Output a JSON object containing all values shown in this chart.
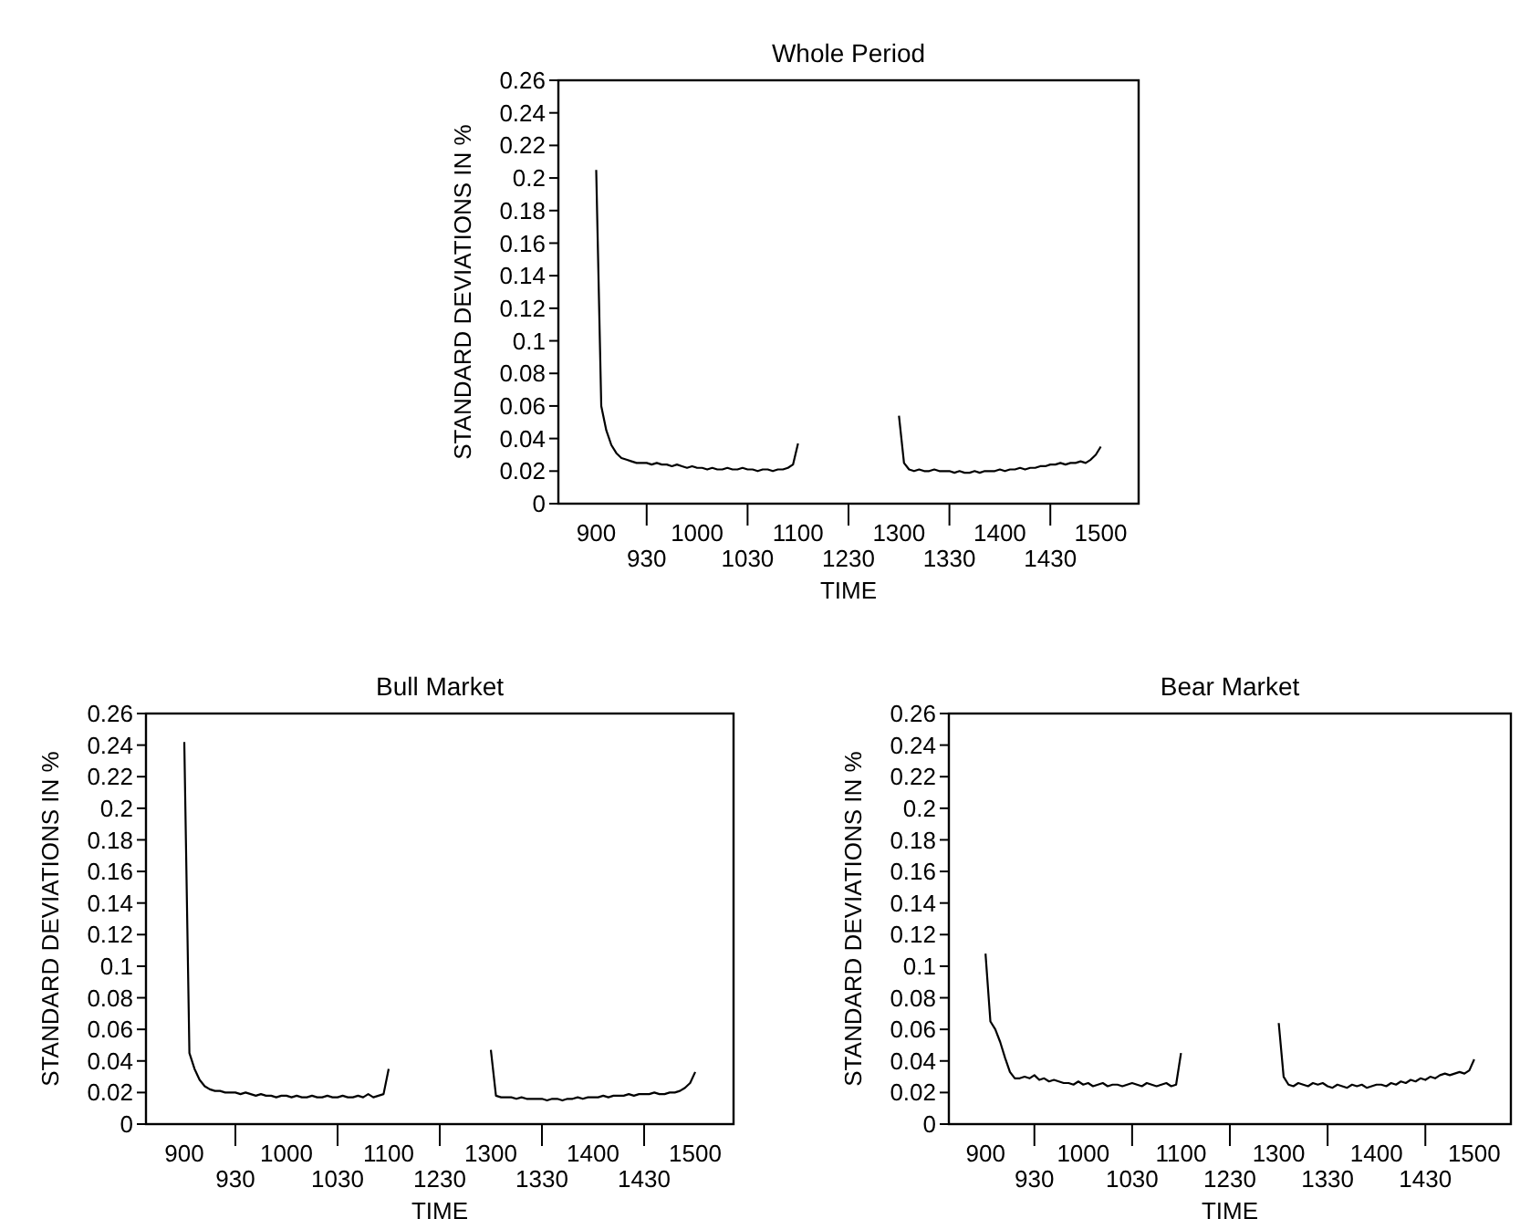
{
  "chart_data": [
    {
      "type": "line",
      "title": "Whole Period",
      "xlabel": "TIME",
      "ylabel": "STANDARD DEVIATIONS IN %",
      "ylim": [
        0,
        0.26
      ],
      "categories": [
        "900",
        null,
        null,
        null,
        null,
        null,
        null,
        null,
        null,
        null,
        "930",
        null,
        null,
        null,
        null,
        null,
        null,
        null,
        null,
        null,
        "1000",
        null,
        null,
        null,
        null,
        null,
        null,
        null,
        null,
        null,
        "1030",
        null,
        null,
        null,
        null,
        null,
        null,
        null,
        null,
        null,
        "1100",
        null,
        null,
        null,
        null,
        null,
        null,
        null,
        null,
        null,
        "1230",
        null,
        null,
        null,
        null,
        null,
        null,
        null,
        null,
        null,
        "1300",
        null,
        null,
        null,
        null,
        null,
        null,
        null,
        null,
        null,
        "1330",
        null,
        null,
        null,
        null,
        null,
        null,
        null,
        null,
        null,
        "1400",
        null,
        null,
        null,
        null,
        null,
        null,
        null,
        null,
        null,
        "1430",
        null,
        null,
        null,
        null,
        null,
        null,
        null,
        null,
        null,
        "1500"
      ],
      "yticks": [
        0,
        0.02,
        0.04,
        0.06,
        0.08,
        0.1,
        0.12,
        0.14,
        0.16,
        0.18,
        0.2,
        0.22,
        0.24,
        0.26
      ],
      "marker": "none",
      "line_style": "solid",
      "series": [
        {
          "color": "#000000",
          "values": [
            0.205,
            0.06,
            0.045,
            0.036,
            0.031,
            0.028,
            0.027,
            0.026,
            0.025,
            0.025,
            0.025,
            0.024,
            0.025,
            0.024,
            0.024,
            0.023,
            0.024,
            0.023,
            0.022,
            0.023,
            0.022,
            0.022,
            0.021,
            0.022,
            0.021,
            0.021,
            0.022,
            0.021,
            0.021,
            0.022,
            0.021,
            0.021,
            0.02,
            0.021,
            0.021,
            0.02,
            0.021,
            0.021,
            0.022,
            0.024,
            0.037,
            null,
            null,
            null,
            null,
            null,
            null,
            null,
            null,
            null,
            null,
            null,
            null,
            null,
            null,
            null,
            null,
            null,
            null,
            null,
            0.054,
            0.025,
            0.021,
            0.02,
            0.021,
            0.02,
            0.02,
            0.021,
            0.02,
            0.02,
            0.02,
            0.019,
            0.02,
            0.019,
            0.019,
            0.02,
            0.019,
            0.02,
            0.02,
            0.02,
            0.021,
            0.02,
            0.021,
            0.021,
            0.022,
            0.021,
            0.022,
            0.022,
            0.023,
            0.023,
            0.024,
            0.024,
            0.025,
            0.024,
            0.025,
            0.025,
            0.026,
            0.025,
            0.027,
            0.03,
            0.035
          ]
        }
      ]
    },
    {
      "type": "line",
      "title": "Bull Market",
      "xlabel": "TIME",
      "ylabel": "STANDARD DEVIATIONS IN %",
      "ylim": [
        0,
        0.26
      ],
      "categories": [
        "900",
        null,
        null,
        null,
        null,
        null,
        null,
        null,
        null,
        null,
        "930",
        null,
        null,
        null,
        null,
        null,
        null,
        null,
        null,
        null,
        "1000",
        null,
        null,
        null,
        null,
        null,
        null,
        null,
        null,
        null,
        "1030",
        null,
        null,
        null,
        null,
        null,
        null,
        null,
        null,
        null,
        "1100",
        null,
        null,
        null,
        null,
        null,
        null,
        null,
        null,
        null,
        "1230",
        null,
        null,
        null,
        null,
        null,
        null,
        null,
        null,
        null,
        "1300",
        null,
        null,
        null,
        null,
        null,
        null,
        null,
        null,
        null,
        "1330",
        null,
        null,
        null,
        null,
        null,
        null,
        null,
        null,
        null,
        "1400",
        null,
        null,
        null,
        null,
        null,
        null,
        null,
        null,
        null,
        "1430",
        null,
        null,
        null,
        null,
        null,
        null,
        null,
        null,
        null,
        "1500"
      ],
      "yticks": [
        0,
        0.02,
        0.04,
        0.06,
        0.08,
        0.1,
        0.12,
        0.14,
        0.16,
        0.18,
        0.2,
        0.22,
        0.24,
        0.26
      ],
      "marker": "none",
      "line_style": "solid",
      "series": [
        {
          "color": "#000000",
          "values": [
            0.242,
            0.045,
            0.035,
            0.028,
            0.024,
            0.022,
            0.021,
            0.021,
            0.02,
            0.02,
            0.02,
            0.019,
            0.02,
            0.019,
            0.018,
            0.019,
            0.018,
            0.018,
            0.017,
            0.018,
            0.018,
            0.017,
            0.018,
            0.017,
            0.017,
            0.018,
            0.017,
            0.017,
            0.018,
            0.017,
            0.017,
            0.018,
            0.017,
            0.017,
            0.018,
            0.017,
            0.019,
            0.017,
            0.018,
            0.019,
            0.035,
            null,
            null,
            null,
            null,
            null,
            null,
            null,
            null,
            null,
            null,
            null,
            null,
            null,
            null,
            null,
            null,
            null,
            null,
            null,
            0.047,
            0.018,
            0.017,
            0.017,
            0.017,
            0.016,
            0.017,
            0.016,
            0.016,
            0.016,
            0.016,
            0.015,
            0.016,
            0.016,
            0.015,
            0.016,
            0.016,
            0.017,
            0.016,
            0.017,
            0.017,
            0.017,
            0.018,
            0.017,
            0.018,
            0.018,
            0.018,
            0.019,
            0.018,
            0.019,
            0.019,
            0.019,
            0.02,
            0.019,
            0.019,
            0.02,
            0.02,
            0.021,
            0.023,
            0.026,
            0.033
          ]
        }
      ]
    },
    {
      "type": "line",
      "title": "Bear Market",
      "xlabel": "TIME",
      "ylabel": "STANDARD DEVIATIONS IN %",
      "ylim": [
        0,
        0.26
      ],
      "categories": [
        "900",
        null,
        null,
        null,
        null,
        null,
        null,
        null,
        null,
        null,
        "930",
        null,
        null,
        null,
        null,
        null,
        null,
        null,
        null,
        null,
        "1000",
        null,
        null,
        null,
        null,
        null,
        null,
        null,
        null,
        null,
        "1030",
        null,
        null,
        null,
        null,
        null,
        null,
        null,
        null,
        null,
        "1100",
        null,
        null,
        null,
        null,
        null,
        null,
        null,
        null,
        null,
        "1230",
        null,
        null,
        null,
        null,
        null,
        null,
        null,
        null,
        null,
        "1300",
        null,
        null,
        null,
        null,
        null,
        null,
        null,
        null,
        null,
        "1330",
        null,
        null,
        null,
        null,
        null,
        null,
        null,
        null,
        null,
        "1400",
        null,
        null,
        null,
        null,
        null,
        null,
        null,
        null,
        null,
        "1430",
        null,
        null,
        null,
        null,
        null,
        null,
        null,
        null,
        null,
        "1500"
      ],
      "yticks": [
        0,
        0.02,
        0.04,
        0.06,
        0.08,
        0.1,
        0.12,
        0.14,
        0.16,
        0.18,
        0.2,
        0.22,
        0.24,
        0.26
      ],
      "marker": "none",
      "line_style": "solid",
      "series": [
        {
          "color": "#000000",
          "values": [
            0.108,
            0.065,
            0.06,
            0.052,
            0.042,
            0.033,
            0.029,
            0.029,
            0.03,
            0.029,
            0.031,
            0.028,
            0.029,
            0.027,
            0.028,
            0.027,
            0.026,
            0.026,
            0.025,
            0.027,
            0.025,
            0.026,
            0.024,
            0.025,
            0.026,
            0.024,
            0.025,
            0.025,
            0.024,
            0.025,
            0.026,
            0.025,
            0.024,
            0.026,
            0.025,
            0.024,
            0.025,
            0.026,
            0.024,
            0.025,
            0.045,
            null,
            null,
            null,
            null,
            null,
            null,
            null,
            null,
            null,
            null,
            null,
            null,
            null,
            null,
            null,
            null,
            null,
            null,
            null,
            0.064,
            0.03,
            0.025,
            0.024,
            0.026,
            0.025,
            0.024,
            0.026,
            0.025,
            0.026,
            0.024,
            0.023,
            0.025,
            0.024,
            0.023,
            0.025,
            0.024,
            0.025,
            0.023,
            0.024,
            0.025,
            0.025,
            0.024,
            0.026,
            0.025,
            0.027,
            0.026,
            0.028,
            0.027,
            0.029,
            0.028,
            0.03,
            0.029,
            0.031,
            0.032,
            0.031,
            0.032,
            0.033,
            0.032,
            0.034,
            0.041
          ]
        }
      ]
    }
  ]
}
